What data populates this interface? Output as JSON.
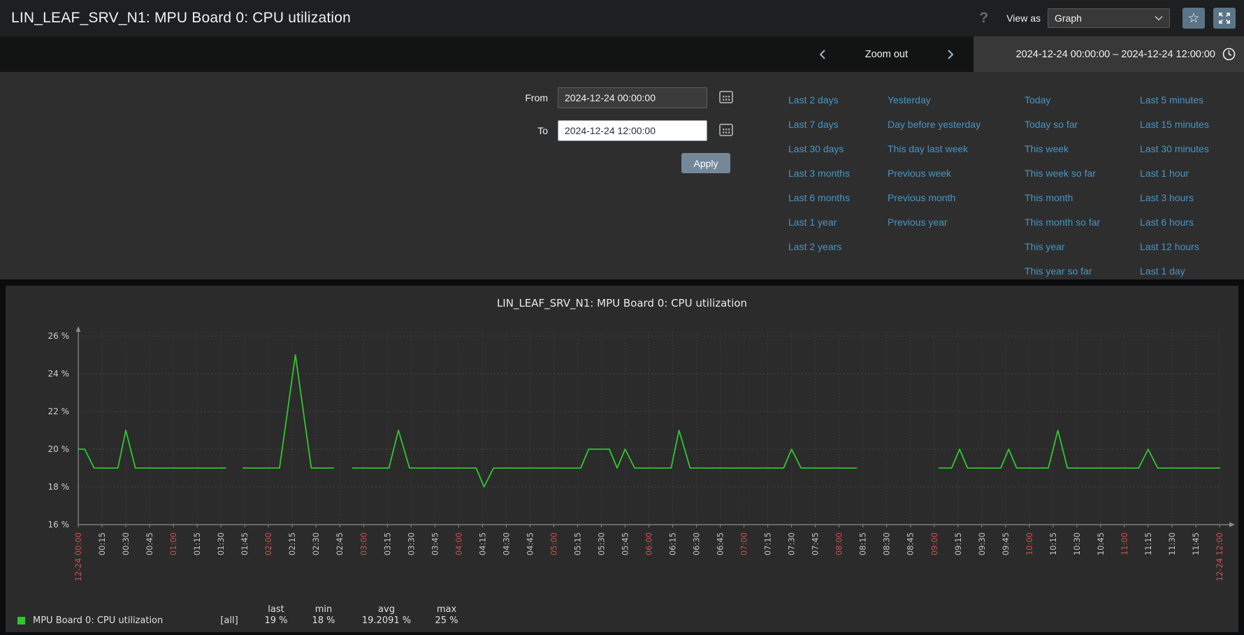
{
  "header": {
    "title": "LIN_LEAF_SRV_N1: MPU Board 0: CPU utilization",
    "help_icon": "?",
    "view_as_label": "View as",
    "view_as_value": "Graph"
  },
  "time_nav": {
    "zoom_out_label": "Zoom out",
    "range_label": "2024-12-24 00:00:00 – 2024-12-24 12:00:00"
  },
  "filter": {
    "from_label": "From",
    "from_value": "2024-12-24 00:00:00",
    "to_label": "To",
    "to_value": "2024-12-24 12:00:00",
    "apply_label": "Apply",
    "quick_links": [
      [
        "Last 2 days",
        "Last 7 days",
        "Last 30 days",
        "Last 3 months",
        "Last 6 months",
        "Last 1 year",
        "Last 2 years"
      ],
      [
        "Yesterday",
        "Day before yesterday",
        "This day last week",
        "Previous week",
        "Previous month",
        "Previous year"
      ],
      [
        "Today",
        "Today so far",
        "This week",
        "This week so far",
        "This month",
        "This month so far",
        "This year",
        "This year so far"
      ],
      [
        "Last 5 minutes",
        "Last 15 minutes",
        "Last 30 minutes",
        "Last 1 hour",
        "Last 3 hours",
        "Last 6 hours",
        "Last 12 hours",
        "Last 1 day"
      ]
    ]
  },
  "chart_data": {
    "type": "line",
    "title": "LIN_LEAF_SRV_N1: MPU Board 0: CPU utilization",
    "unit": "%",
    "ylim": [
      16,
      26
    ],
    "x_max_minutes": 720,
    "grid": true,
    "y_ticks": [
      {
        "value": 26,
        "label": "26 %"
      },
      {
        "value": 24,
        "label": "24 %"
      },
      {
        "value": 22,
        "label": "22 %"
      },
      {
        "value": 20,
        "label": "20 %"
      },
      {
        "value": 18,
        "label": "18 %"
      },
      {
        "value": 16,
        "label": "16 %"
      }
    ],
    "x_ticks": [
      [
        0,
        "12-24 00:00",
        1
      ],
      [
        15,
        "00:15",
        0
      ],
      [
        30,
        "00:30",
        0
      ],
      [
        45,
        "00:45",
        0
      ],
      [
        60,
        "01:00",
        1
      ],
      [
        75,
        "01:15",
        0
      ],
      [
        90,
        "01:30",
        0
      ],
      [
        105,
        "01:45",
        0
      ],
      [
        120,
        "02:00",
        1
      ],
      [
        135,
        "02:15",
        0
      ],
      [
        150,
        "02:30",
        0
      ],
      [
        165,
        "02:45",
        0
      ],
      [
        180,
        "03:00",
        1
      ],
      [
        195,
        "03:15",
        0
      ],
      [
        210,
        "03:30",
        0
      ],
      [
        225,
        "03:45",
        0
      ],
      [
        240,
        "04:00",
        1
      ],
      [
        255,
        "04:15",
        0
      ],
      [
        270,
        "04:30",
        0
      ],
      [
        285,
        "04:45",
        0
      ],
      [
        300,
        "05:00",
        1
      ],
      [
        315,
        "05:15",
        0
      ],
      [
        330,
        "05:30",
        0
      ],
      [
        345,
        "05:45",
        0
      ],
      [
        360,
        "06:00",
        1
      ],
      [
        375,
        "06:15",
        0
      ],
      [
        390,
        "06:30",
        0
      ],
      [
        405,
        "06:45",
        0
      ],
      [
        420,
        "07:00",
        1
      ],
      [
        435,
        "07:15",
        0
      ],
      [
        450,
        "07:30",
        0
      ],
      [
        465,
        "07:45",
        0
      ],
      [
        480,
        "08:00",
        1
      ],
      [
        495,
        "08:15",
        0
      ],
      [
        510,
        "08:30",
        0
      ],
      [
        525,
        "08:45",
        0
      ],
      [
        540,
        "09:00",
        1
      ],
      [
        555,
        "09:15",
        0
      ],
      [
        570,
        "09:30",
        0
      ],
      [
        585,
        "09:45",
        0
      ],
      [
        600,
        "10:00",
        1
      ],
      [
        615,
        "10:15",
        0
      ],
      [
        630,
        "10:30",
        0
      ],
      [
        645,
        "10:45",
        0
      ],
      [
        660,
        "11:00",
        1
      ],
      [
        675,
        "11:15",
        0
      ],
      [
        690,
        "11:30",
        0
      ],
      [
        705,
        "11:45",
        0
      ],
      [
        720,
        "12-24 12:00",
        1
      ]
    ],
    "series": [
      {
        "name": "MPU Board 0: CPU utilization",
        "color": "#2ec82e",
        "segments": [
          [
            [
              0,
              20
            ],
            [
              4,
              20
            ],
            [
              10,
              19
            ],
            [
              25,
              19
            ],
            [
              30,
              21
            ],
            [
              36,
              19
            ],
            [
              93,
              19
            ]
          ],
          [
            [
              104,
              19
            ],
            [
              127,
              19
            ],
            [
              137,
              25
            ],
            [
              147,
              19
            ],
            [
              161,
              19
            ]
          ],
          [
            [
              173,
              19
            ],
            [
              196,
              19
            ],
            [
              202,
              21
            ],
            [
              209,
              19
            ],
            [
              251,
              19
            ],
            [
              256,
              18
            ],
            [
              262,
              19
            ],
            [
              317,
              19
            ],
            [
              322,
              20
            ],
            [
              335,
              20
            ],
            [
              340,
              19
            ],
            [
              345,
              20
            ],
            [
              351,
              19
            ],
            [
              374,
              19
            ],
            [
              379,
              21
            ],
            [
              386,
              19
            ],
            [
              445,
              19
            ],
            [
              450,
              20
            ],
            [
              456,
              19
            ],
            [
              491,
              19
            ]
          ],
          [
            [
              543,
              19
            ],
            [
              551,
              19
            ],
            [
              556,
              20
            ],
            [
              561,
              19
            ],
            [
              582,
              19
            ],
            [
              587,
              20
            ],
            [
              592,
              19
            ],
            [
              612,
              19
            ],
            [
              618,
              21
            ],
            [
              624,
              19
            ],
            [
              669,
              19
            ],
            [
              675,
              20
            ],
            [
              681,
              19
            ],
            [
              720,
              19
            ]
          ]
        ]
      }
    ],
    "legend": {
      "swatch_color": "#2ec82e",
      "name": "MPU Board 0: CPU utilization",
      "scope": "[all]",
      "stat_headers": [
        "last",
        "min",
        "avg",
        "max"
      ],
      "stat_values": [
        "19 %",
        "18 %",
        "19.2091 %",
        "25 %"
      ]
    },
    "axis_color": "#8c8c8c",
    "grid_color": "#464646",
    "ytick_color": "#cdcdcd",
    "xtick_color": "#c6c6c6",
    "xtick_major_color": "#cf5252"
  },
  "colors": {
    "link": "#4796c4",
    "accent_button": "#5b7487",
    "apply_button": "#74889a",
    "series_green": "#2ec82e"
  }
}
